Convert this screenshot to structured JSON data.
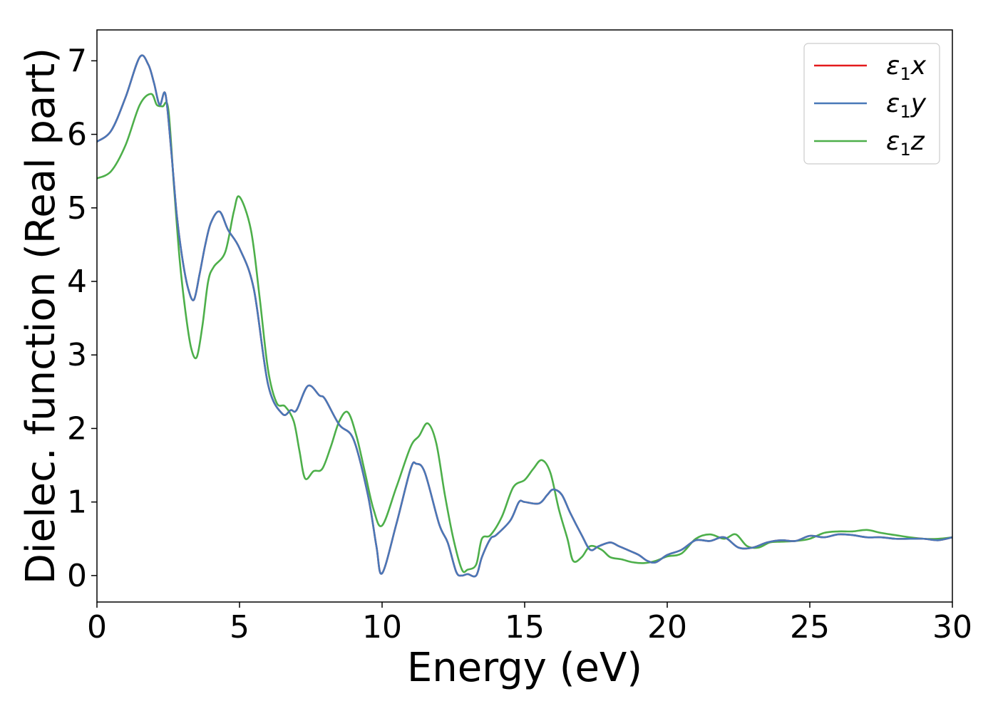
{
  "chart_data": {
    "type": "line",
    "title": "",
    "xlabel": "Energy (eV)",
    "ylabel": "Dielec. function (Real part)",
    "xlim": [
      0,
      30
    ],
    "ylim": [
      -0.36,
      7.42
    ],
    "xticks": [
      0,
      5,
      10,
      15,
      20,
      25,
      30
    ],
    "xtick_labels": [
      "0",
      "5",
      "10",
      "15",
      "20",
      "25",
      "30"
    ],
    "yticks": [
      0,
      1,
      2,
      3,
      4,
      5,
      6,
      7
    ],
    "ytick_labels": [
      "0",
      "1",
      "2",
      "3",
      "4",
      "5",
      "6",
      "7"
    ],
    "grid": false,
    "legend_position": "top-right",
    "series": [
      {
        "name": "ε1x",
        "legend_label": {
          "base": "ε",
          "sub": "1",
          "axis": "x"
        },
        "color": "#e41a1c",
        "x": [
          0,
          0.5,
          1.0,
          1.5,
          1.8,
          2.0,
          2.2,
          2.4,
          2.6,
          2.8,
          3.0,
          3.2,
          3.4,
          3.6,
          3.8,
          4.0,
          4.3,
          4.6,
          5.0,
          5.5,
          6.0,
          6.5,
          6.8,
          7.0,
          7.4,
          7.8,
          8.0,
          8.5,
          9.0,
          9.5,
          9.8,
          10.0,
          10.5,
          11.0,
          11.2,
          11.5,
          12.0,
          12.3,
          12.6,
          12.8,
          13.0,
          13.3,
          13.5,
          13.8,
          14.0,
          14.5,
          14.8,
          15.0,
          15.5,
          15.8,
          16.0,
          16.3,
          16.6,
          17.0,
          17.3,
          17.6,
          18.0,
          18.3,
          18.6,
          19.0,
          19.3,
          19.6,
          20.0,
          20.5,
          21.0,
          21.5,
          22.0,
          22.5,
          23.0,
          23.5,
          24.0,
          24.5,
          25.0,
          25.5,
          26.0,
          26.5,
          27.0,
          27.5,
          28.0,
          28.5,
          29.0,
          29.5,
          30.0
        ],
        "y": [
          5.9,
          6.05,
          6.5,
          7.05,
          6.95,
          6.7,
          6.4,
          6.55,
          5.8,
          4.9,
          4.3,
          3.9,
          3.75,
          4.1,
          4.5,
          4.8,
          4.95,
          4.7,
          4.45,
          3.9,
          2.6,
          2.2,
          2.25,
          2.25,
          2.58,
          2.45,
          2.4,
          2.05,
          1.85,
          1.1,
          0.4,
          0.03,
          0.7,
          1.45,
          1.52,
          1.4,
          0.7,
          0.45,
          0.05,
          0.0,
          0.02,
          0.0,
          0.25,
          0.5,
          0.55,
          0.75,
          1.0,
          1.0,
          0.98,
          1.1,
          1.17,
          1.1,
          0.85,
          0.55,
          0.35,
          0.4,
          0.45,
          0.4,
          0.35,
          0.28,
          0.2,
          0.18,
          0.28,
          0.35,
          0.48,
          0.47,
          0.52,
          0.38,
          0.38,
          0.45,
          0.48,
          0.47,
          0.54,
          0.52,
          0.56,
          0.55,
          0.52,
          0.52,
          0.5,
          0.5,
          0.5,
          0.48,
          0.52
        ]
      },
      {
        "name": "ε1y",
        "legend_label": {
          "base": "ε",
          "sub": "1",
          "axis": "y"
        },
        "color": "#4878b8",
        "x": [
          0,
          0.5,
          1.0,
          1.5,
          1.8,
          2.0,
          2.2,
          2.4,
          2.6,
          2.8,
          3.0,
          3.2,
          3.4,
          3.6,
          3.8,
          4.0,
          4.3,
          4.6,
          5.0,
          5.5,
          6.0,
          6.5,
          6.8,
          7.0,
          7.4,
          7.8,
          8.0,
          8.5,
          9.0,
          9.5,
          9.8,
          10.0,
          10.5,
          11.0,
          11.2,
          11.5,
          12.0,
          12.3,
          12.6,
          12.8,
          13.0,
          13.3,
          13.5,
          13.8,
          14.0,
          14.5,
          14.8,
          15.0,
          15.5,
          15.8,
          16.0,
          16.3,
          16.6,
          17.0,
          17.3,
          17.6,
          18.0,
          18.3,
          18.6,
          19.0,
          19.3,
          19.6,
          20.0,
          20.5,
          21.0,
          21.5,
          22.0,
          22.5,
          23.0,
          23.5,
          24.0,
          24.5,
          25.0,
          25.5,
          26.0,
          26.5,
          27.0,
          27.5,
          28.0,
          28.5,
          29.0,
          29.5,
          30.0
        ],
        "y": [
          5.9,
          6.05,
          6.5,
          7.05,
          6.95,
          6.7,
          6.4,
          6.55,
          5.8,
          4.9,
          4.3,
          3.9,
          3.75,
          4.1,
          4.5,
          4.8,
          4.95,
          4.7,
          4.45,
          3.9,
          2.6,
          2.2,
          2.25,
          2.25,
          2.58,
          2.45,
          2.4,
          2.05,
          1.85,
          1.1,
          0.4,
          0.03,
          0.7,
          1.45,
          1.52,
          1.4,
          0.7,
          0.45,
          0.05,
          0.0,
          0.02,
          0.0,
          0.25,
          0.5,
          0.55,
          0.75,
          1.0,
          1.0,
          0.98,
          1.1,
          1.17,
          1.1,
          0.85,
          0.55,
          0.35,
          0.4,
          0.45,
          0.4,
          0.35,
          0.28,
          0.2,
          0.18,
          0.28,
          0.35,
          0.48,
          0.47,
          0.52,
          0.38,
          0.38,
          0.45,
          0.48,
          0.47,
          0.54,
          0.52,
          0.56,
          0.55,
          0.52,
          0.52,
          0.5,
          0.5,
          0.5,
          0.48,
          0.52
        ]
      },
      {
        "name": "ε1z",
        "legend_label": {
          "base": "ε",
          "sub": "1",
          "axis": "z"
        },
        "color": "#4daf4a",
        "x": [
          0,
          0.5,
          1.0,
          1.5,
          1.9,
          2.1,
          2.3,
          2.5,
          2.7,
          2.9,
          3.1,
          3.3,
          3.5,
          3.7,
          3.9,
          4.1,
          4.5,
          4.8,
          5.0,
          5.4,
          5.7,
          6.0,
          6.3,
          6.6,
          6.9,
          7.1,
          7.3,
          7.6,
          7.9,
          8.2,
          8.5,
          8.8,
          9.1,
          9.4,
          9.7,
          10.0,
          10.5,
          11.0,
          11.3,
          11.6,
          11.9,
          12.2,
          12.5,
          12.8,
          13.0,
          13.3,
          13.5,
          13.8,
          14.2,
          14.6,
          15.0,
          15.3,
          15.6,
          15.9,
          16.2,
          16.5,
          16.7,
          17.0,
          17.3,
          17.7,
          18.0,
          18.4,
          18.8,
          19.2,
          19.6,
          20.0,
          20.5,
          21.0,
          21.5,
          22.0,
          22.4,
          22.8,
          23.2,
          23.6,
          24.0,
          24.5,
          25.0,
          25.5,
          26.0,
          26.5,
          27.0,
          27.5,
          28.0,
          28.5,
          29.0,
          29.5,
          30.0
        ],
        "y": [
          5.4,
          5.5,
          5.85,
          6.4,
          6.55,
          6.4,
          6.38,
          6.35,
          5.3,
          4.3,
          3.6,
          3.1,
          2.97,
          3.4,
          4.0,
          4.2,
          4.4,
          4.95,
          5.15,
          4.7,
          3.8,
          2.8,
          2.35,
          2.3,
          2.1,
          1.7,
          1.32,
          1.42,
          1.45,
          1.75,
          2.1,
          2.22,
          1.9,
          1.4,
          0.9,
          0.68,
          1.2,
          1.75,
          1.9,
          2.07,
          1.8,
          1.1,
          0.5,
          0.08,
          0.08,
          0.15,
          0.5,
          0.55,
          0.8,
          1.2,
          1.3,
          1.45,
          1.57,
          1.4,
          0.9,
          0.5,
          0.2,
          0.25,
          0.4,
          0.35,
          0.25,
          0.22,
          0.18,
          0.17,
          0.2,
          0.26,
          0.3,
          0.5,
          0.56,
          0.5,
          0.56,
          0.4,
          0.38,
          0.45,
          0.46,
          0.47,
          0.5,
          0.58,
          0.6,
          0.6,
          0.62,
          0.58,
          0.55,
          0.52,
          0.5,
          0.5,
          0.52
        ]
      }
    ]
  }
}
